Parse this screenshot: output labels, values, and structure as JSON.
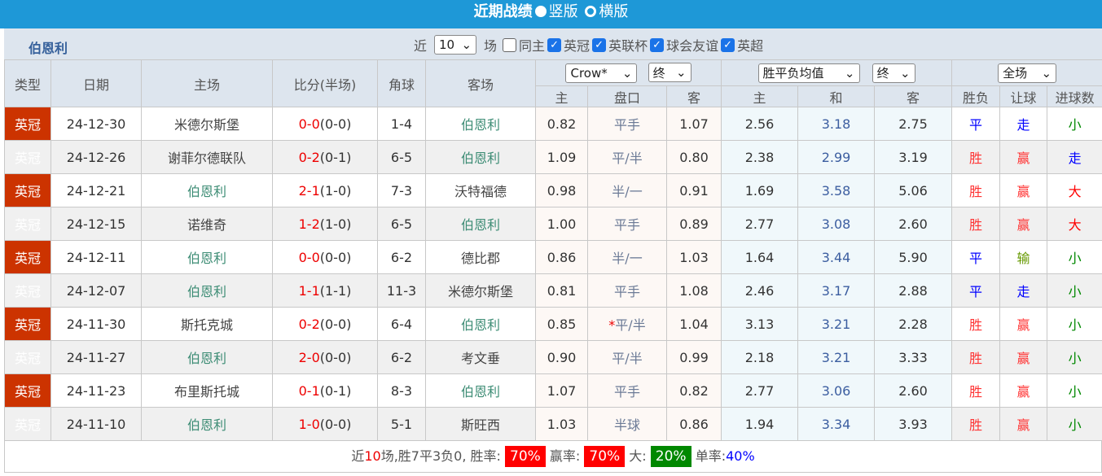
{
  "header": {
    "title": "近期战绩",
    "option_vertical": "竖版",
    "option_horizontal": "横版",
    "selected": "vertical"
  },
  "filter": {
    "team": "伯恩利",
    "recent_label": "近",
    "count": "10",
    "games_label": "场",
    "same_home": {
      "label": "同主",
      "checked": false
    },
    "leagues": [
      {
        "label": "英冠",
        "checked": true
      },
      {
        "label": "英联杯",
        "checked": true
      },
      {
        "label": "球会友谊",
        "checked": true
      },
      {
        "label": "英超",
        "checked": true
      }
    ]
  },
  "columns": {
    "type": "类型",
    "date": "日期",
    "home": "主场",
    "score": "比分(半场)",
    "corners": "角球",
    "away": "客场",
    "asian_company": "Crow*",
    "asian_state": "终",
    "euro_type": "胜平负均值",
    "euro_state": "终",
    "scope": "全场",
    "a_home": "主",
    "a_line": "盘口",
    "a_away": "客",
    "e_home": "主",
    "e_draw": "和",
    "e_away": "客",
    "res": "胜负",
    "hcp": "让球",
    "goals": "进球数"
  },
  "colors": {
    "title_bar": "#1e98d7",
    "league_badge": "#cc3300",
    "burnley": "#3c8c74"
  },
  "rows": [
    {
      "type": "英冠",
      "date": "24-12-30",
      "home": "米德尔斯堡",
      "score": "0-0",
      "half": "(0-0)",
      "corners": "1-4",
      "away": "伯恩利",
      "ah": "0.82",
      "line": "平手",
      "aa": "1.07",
      "eh": "2.56",
      "ed": "3.18",
      "ea": "2.75",
      "res": "平",
      "hcp": "走",
      "goals": "小"
    },
    {
      "type": "英冠",
      "date": "24-12-26",
      "home": "谢菲尔德联队",
      "score": "0-2",
      "half": "(0-1)",
      "corners": "6-5",
      "away": "伯恩利",
      "ah": "1.09",
      "line": "平/半",
      "aa": "0.80",
      "eh": "2.38",
      "ed": "2.99",
      "ea": "3.19",
      "res": "胜",
      "hcp": "赢",
      "goals": "走"
    },
    {
      "type": "英冠",
      "date": "24-12-21",
      "home": "伯恩利",
      "score": "2-1",
      "half": "(1-0)",
      "corners": "7-3",
      "away": "沃特福德",
      "ah": "0.98",
      "line": "半/一",
      "aa": "0.91",
      "eh": "1.69",
      "ed": "3.58",
      "ea": "5.06",
      "res": "胜",
      "hcp": "赢",
      "goals": "大"
    },
    {
      "type": "英冠",
      "date": "24-12-15",
      "home": "诺维奇",
      "score": "1-2",
      "half": "(1-0)",
      "corners": "6-5",
      "away": "伯恩利",
      "ah": "1.00",
      "line": "平手",
      "aa": "0.89",
      "eh": "2.77",
      "ed": "3.08",
      "ea": "2.60",
      "res": "胜",
      "hcp": "赢",
      "goals": "大"
    },
    {
      "type": "英冠",
      "date": "24-12-11",
      "home": "伯恩利",
      "score": "0-0",
      "half": "(0-0)",
      "corners": "6-2",
      "away": "德比郡",
      "ah": "0.86",
      "line": "半/一",
      "aa": "1.03",
      "eh": "1.64",
      "ed": "3.44",
      "ea": "5.90",
      "res": "平",
      "hcp": "输",
      "goals": "小"
    },
    {
      "type": "英冠",
      "date": "24-12-07",
      "home": "伯恩利",
      "score": "1-1",
      "half": "(1-1)",
      "corners": "11-3",
      "away": "米德尔斯堡",
      "ah": "0.81",
      "line": "平手",
      "aa": "1.08",
      "eh": "2.46",
      "ed": "3.17",
      "ea": "2.88",
      "res": "平",
      "hcp": "走",
      "goals": "小"
    },
    {
      "type": "英冠",
      "date": "24-11-30",
      "home": "斯托克城",
      "score": "0-2",
      "half": "(0-0)",
      "corners": "6-4",
      "away": "伯恩利",
      "ah": "0.85",
      "line_mark": "*",
      "line": "平/半",
      "aa": "1.04",
      "eh": "3.13",
      "ed": "3.21",
      "ea": "2.28",
      "res": "胜",
      "hcp": "赢",
      "goals": "小"
    },
    {
      "type": "英冠",
      "date": "24-11-27",
      "home": "伯恩利",
      "score": "2-0",
      "half": "(0-0)",
      "corners": "6-2",
      "away": "考文垂",
      "ah": "0.90",
      "line": "平/半",
      "aa": "0.99",
      "eh": "2.18",
      "ed": "3.21",
      "ea": "3.33",
      "res": "胜",
      "hcp": "赢",
      "goals": "小"
    },
    {
      "type": "英冠",
      "date": "24-11-23",
      "home": "布里斯托城",
      "score": "0-1",
      "half": "(0-1)",
      "corners": "8-3",
      "away": "伯恩利",
      "ah": "1.07",
      "line": "平手",
      "aa": "0.82",
      "eh": "2.77",
      "ed": "3.06",
      "ea": "2.60",
      "res": "胜",
      "hcp": "赢",
      "goals": "小"
    },
    {
      "type": "英冠",
      "date": "24-11-10",
      "home": "伯恩利",
      "score": "1-0",
      "half": "(0-0)",
      "corners": "5-1",
      "away": "斯旺西",
      "ah": "1.03",
      "line": "半球",
      "aa": "0.86",
      "eh": "1.94",
      "ed": "3.34",
      "ea": "3.93",
      "res": "胜",
      "hcp": "赢",
      "goals": "小"
    }
  ],
  "summary": {
    "p1": "近",
    "n": "10",
    "p2": "场,胜7平3负0, 胜率:",
    "win_rate": "70%",
    "l2": "赢率:",
    "hcp_rate": "70%",
    "l3": "大:",
    "big_rate": "20%",
    "l4": "单率:",
    "odd_rate": "40%"
  }
}
